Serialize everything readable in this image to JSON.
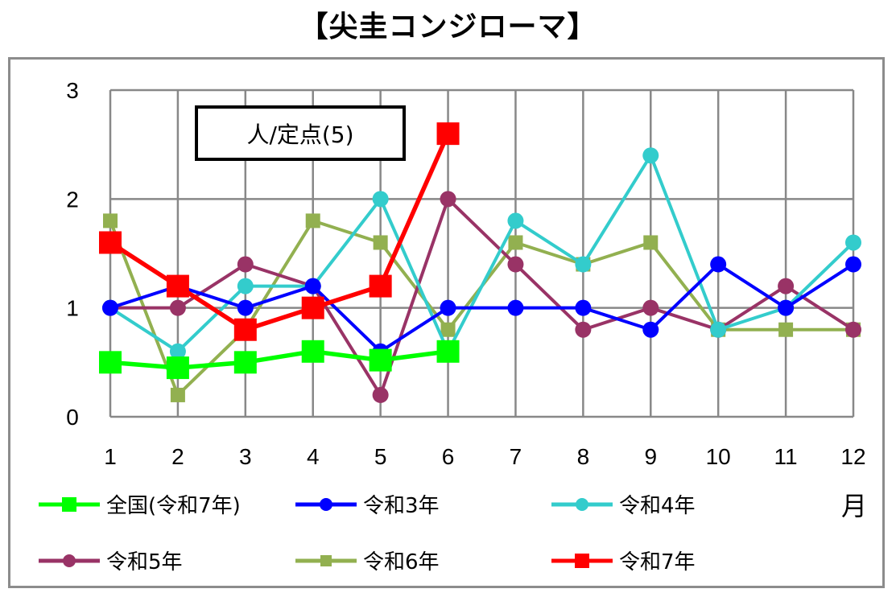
{
  "chart_data": {
    "type": "line",
    "title": "【尖圭コンジローマ】",
    "unit_label": "人/定点(5)",
    "xlabel": "月",
    "ylabel": "",
    "ylim": [
      0,
      3
    ],
    "yticks": [
      0,
      1,
      2,
      3
    ],
    "categories": [
      "1",
      "2",
      "3",
      "4",
      "5",
      "6",
      "7",
      "8",
      "9",
      "10",
      "11",
      "12"
    ],
    "series": [
      {
        "name": "全国(令和7年)",
        "color": "#00ff00",
        "marker": "square",
        "values": [
          0.5,
          0.45,
          0.5,
          0.6,
          0.52,
          0.6,
          null,
          null,
          null,
          null,
          null,
          null
        ]
      },
      {
        "name": "令和3年",
        "color": "#0000ff",
        "marker": "circle",
        "values": [
          1.0,
          1.2,
          1.0,
          1.2,
          0.6,
          1.0,
          1.0,
          1.0,
          0.8,
          1.4,
          1.0,
          1.4
        ]
      },
      {
        "name": "令和4年",
        "color": "#33cccc",
        "marker": "circle",
        "values": [
          1.0,
          0.6,
          1.2,
          1.2,
          2.0,
          0.6,
          1.8,
          1.4,
          2.4,
          0.8,
          1.0,
          1.6
        ]
      },
      {
        "name": "令和5年",
        "color": "#993366",
        "marker": "circle",
        "values": [
          1.0,
          1.0,
          1.4,
          1.2,
          0.2,
          2.0,
          1.4,
          0.8,
          1.0,
          0.8,
          1.2,
          0.8
        ]
      },
      {
        "name": "令和6年",
        "color": "#92b050",
        "marker": "square",
        "values": [
          1.8,
          0.2,
          0.8,
          1.8,
          1.6,
          0.8,
          1.6,
          1.4,
          1.6,
          0.8,
          0.8,
          0.8
        ]
      },
      {
        "name": "令和7年",
        "color": "#ff0000",
        "marker": "square",
        "values": [
          1.6,
          1.2,
          0.8,
          1.0,
          1.2,
          2.6,
          null,
          null,
          null,
          null,
          null,
          null
        ]
      }
    ]
  }
}
